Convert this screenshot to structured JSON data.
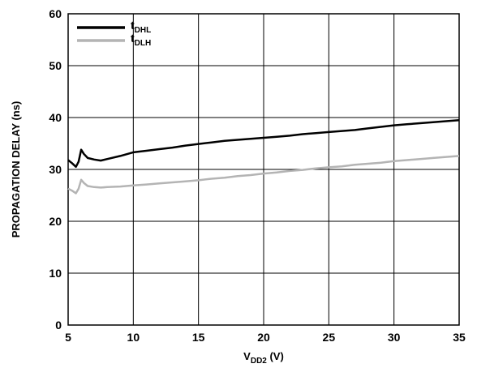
{
  "chart_data": {
    "type": "line",
    "xlabel": {
      "main": "V",
      "sub": "DD2",
      "unit": " (V)"
    },
    "ylabel": "PROPAGATION DELAY (ns)",
    "xlim": [
      5,
      35
    ],
    "ylim": [
      0,
      60
    ],
    "x_ticks": [
      5,
      10,
      15,
      20,
      25,
      30,
      35
    ],
    "y_ticks": [
      0,
      10,
      20,
      30,
      40,
      50,
      60
    ],
    "grid": true,
    "legend_position": "top-left",
    "series": [
      {
        "name": {
          "main": "t",
          "sub": "DHL"
        },
        "color": "#000000",
        "x": [
          5.0,
          5.3,
          5.6,
          5.8,
          6.0,
          6.2,
          6.5,
          7.0,
          7.5,
          8.0,
          9.0,
          10.0,
          11.0,
          12.0,
          13.0,
          14.0,
          15.0,
          16.0,
          17.0,
          18.0,
          19.0,
          20.0,
          21.0,
          22.0,
          23.0,
          24.0,
          25.0,
          26.0,
          27.0,
          28.0,
          29.0,
          30.0,
          31.0,
          32.0,
          33.0,
          34.0,
          35.0
        ],
        "y": [
          31.8,
          31.2,
          30.5,
          31.5,
          33.8,
          33.0,
          32.2,
          31.9,
          31.7,
          32.0,
          32.6,
          33.3,
          33.6,
          33.9,
          34.2,
          34.6,
          34.9,
          35.2,
          35.5,
          35.7,
          35.9,
          36.1,
          36.3,
          36.5,
          36.8,
          37.0,
          37.2,
          37.4,
          37.6,
          37.9,
          38.2,
          38.5,
          38.7,
          38.9,
          39.1,
          39.3,
          39.5
        ]
      },
      {
        "name": {
          "main": "t",
          "sub": "DLH"
        },
        "color": "#b4b4b4",
        "x": [
          5.0,
          5.3,
          5.6,
          5.8,
          6.0,
          6.2,
          6.5,
          7.0,
          7.5,
          8.0,
          9.0,
          10.0,
          11.0,
          12.0,
          13.0,
          14.0,
          15.0,
          16.0,
          17.0,
          18.0,
          19.0,
          20.0,
          21.0,
          22.0,
          23.0,
          24.0,
          25.0,
          26.0,
          27.0,
          28.0,
          29.0,
          30.0,
          31.0,
          32.0,
          33.0,
          34.0,
          35.0
        ],
        "y": [
          26.3,
          25.9,
          25.4,
          26.3,
          28.0,
          27.4,
          26.8,
          26.6,
          26.5,
          26.6,
          26.7,
          26.9,
          27.1,
          27.3,
          27.5,
          27.7,
          27.9,
          28.2,
          28.4,
          28.7,
          28.9,
          29.2,
          29.4,
          29.7,
          29.9,
          30.2,
          30.4,
          30.6,
          30.9,
          31.1,
          31.3,
          31.6,
          31.8,
          32.0,
          32.2,
          32.4,
          32.6
        ]
      }
    ]
  }
}
